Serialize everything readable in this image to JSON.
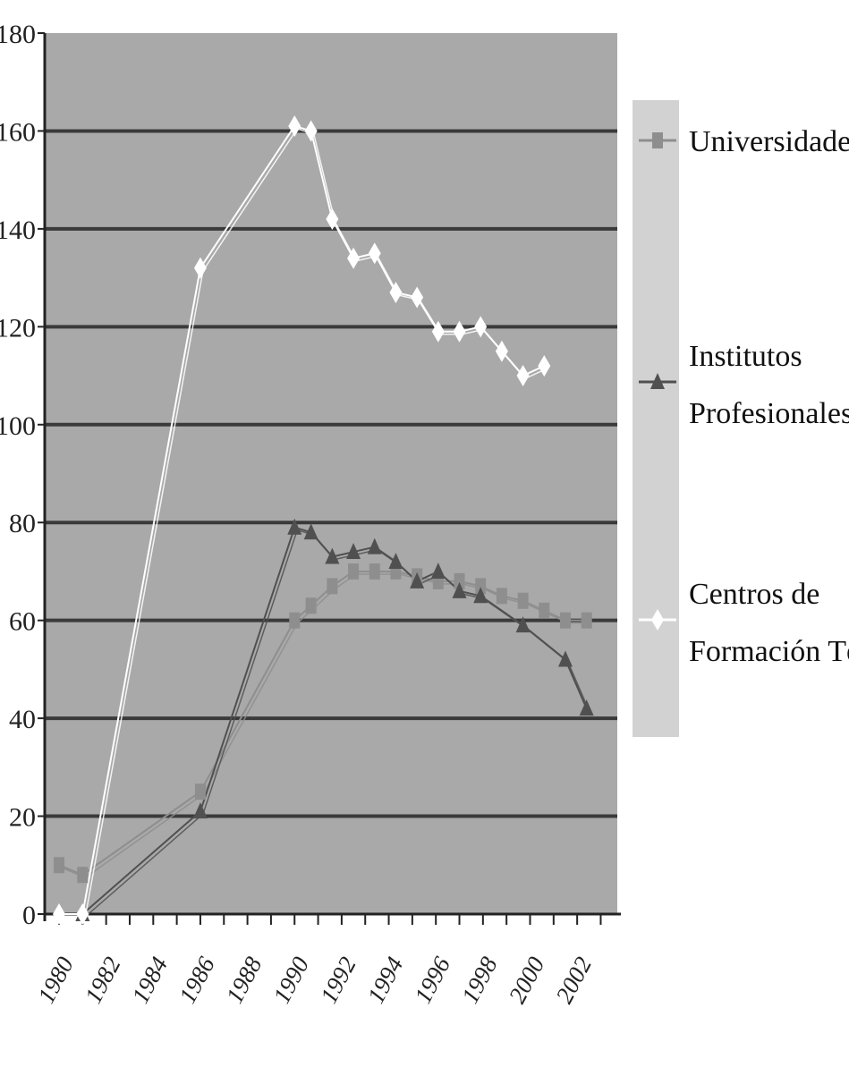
{
  "chart_data": {
    "type": "line",
    "title": "",
    "xlabel": "",
    "ylabel": "",
    "ylim": [
      0,
      180
    ],
    "yticks": [
      0,
      20,
      40,
      60,
      80,
      100,
      120,
      140,
      160,
      180
    ],
    "xlim": [
      1980,
      2003.4
    ],
    "xtick_labels": [
      "1980",
      "1982",
      "1984",
      "1986",
      "1988",
      "1990",
      "1992",
      "1994",
      "1996",
      "1998",
      "2000",
      "2002"
    ],
    "grid": true,
    "legend_position": "right",
    "colors": {
      "plot_background": "#a9a9a9",
      "gridline": "#3a3a3a",
      "universidades": "#8e8e8e",
      "institutos": "#505050",
      "centros": "#ffffff",
      "legend_box": "#d2d2d2"
    },
    "series": [
      {
        "name": "Universidades",
        "marker": "square",
        "values": [
          [
            1980,
            10
          ],
          [
            1981,
            8
          ],
          [
            1986,
            25
          ],
          [
            1990,
            60
          ],
          [
            1990.7,
            63
          ],
          [
            1991.6,
            67
          ],
          [
            1992.5,
            70
          ],
          [
            1993.4,
            70
          ],
          [
            1994.3,
            70
          ],
          [
            1995.2,
            69
          ],
          [
            1996.1,
            68
          ],
          [
            1997,
            68
          ],
          [
            1997.9,
            67
          ],
          [
            1998.8,
            65
          ],
          [
            1999.7,
            64
          ],
          [
            2000.6,
            62
          ],
          [
            2001.5,
            60
          ],
          [
            2002.4,
            60
          ]
        ]
      },
      {
        "name": "Institutos Profesionales",
        "marker": "triangle",
        "values": [
          [
            1981,
            0
          ],
          [
            1986,
            21
          ],
          [
            1990,
            79
          ],
          [
            1990.7,
            78
          ],
          [
            1991.6,
            73
          ],
          [
            1992.5,
            74
          ],
          [
            1993.4,
            75
          ],
          [
            1994.3,
            72
          ],
          [
            1995.2,
            68
          ],
          [
            1996.1,
            70
          ],
          [
            1997,
            66
          ],
          [
            1997.9,
            65
          ],
          [
            1999.7,
            59
          ],
          [
            2001.5,
            52
          ],
          [
            2002.4,
            42
          ]
        ]
      },
      {
        "name": "Centros de Formación Técnica",
        "marker": "diamond",
        "values": [
          [
            1980,
            0
          ],
          [
            1981,
            0
          ],
          [
            1986,
            132
          ],
          [
            1990,
            161
          ],
          [
            1990.7,
            160
          ],
          [
            1991.6,
            142
          ],
          [
            1992.5,
            134
          ],
          [
            1993.4,
            135
          ],
          [
            1994.3,
            127
          ],
          [
            1995.2,
            126
          ],
          [
            1996.1,
            119
          ],
          [
            1997,
            119
          ],
          [
            1997.9,
            120
          ],
          [
            1998.8,
            115
          ],
          [
            1999.7,
            110
          ],
          [
            2000.6,
            112
          ]
        ]
      }
    ],
    "legend": [
      {
        "label_lines": [
          "Universidades"
        ]
      },
      {
        "label_lines": [
          "Institutos",
          "Profesionales"
        ]
      },
      {
        "label_lines": [
          "Centros de",
          "Formación Técnica"
        ]
      }
    ]
  }
}
